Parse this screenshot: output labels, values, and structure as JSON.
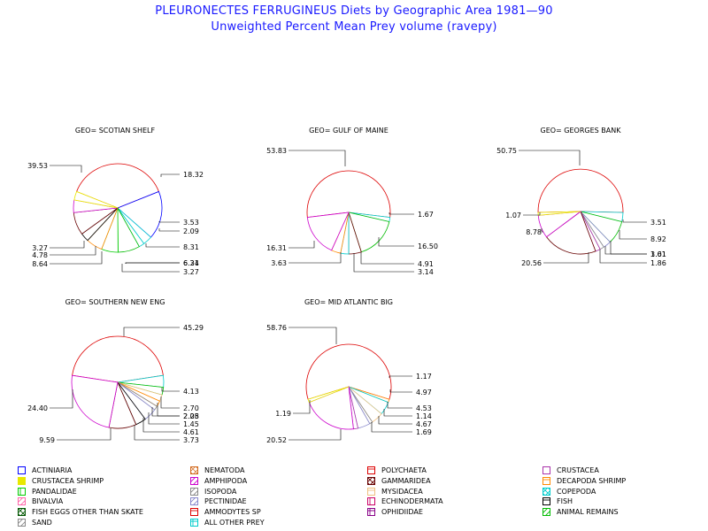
{
  "title": "PLEURONECTES FERRUGINEUS Diets by Geographic Area 1981—90",
  "subtitle": "Unweighted Percent Mean Prey volume (ravepy)",
  "legend_categories": [
    {
      "name": "ACTINIARIA",
      "color": "#0000ff",
      "pattern": "empty"
    },
    {
      "name": "NEMATODA",
      "color": "#d2691e",
      "pattern": "cross"
    },
    {
      "name": "POLYCHAETA",
      "color": "#dd0000",
      "pattern": "hlines"
    },
    {
      "name": "CRUSTACEA",
      "color": "#aa33aa",
      "pattern": "empty"
    },
    {
      "name": "CRUSTACEA SHRIMP",
      "color": "#e8e800",
      "pattern": "solid"
    },
    {
      "name": "AMPHIPODA",
      "color": "#cc00cc",
      "pattern": "diag"
    },
    {
      "name": "GAMMARIDEA",
      "color": "#660000",
      "pattern": "xhatch"
    },
    {
      "name": "DECAPODA SHRIMP",
      "color": "#ff8800",
      "pattern": "hlines"
    },
    {
      "name": "PANDALIDAE",
      "color": "#00cc00",
      "pattern": "vlines"
    },
    {
      "name": "ISOPODA",
      "color": "#888888",
      "pattern": "diag"
    },
    {
      "name": "MYSIDACEA",
      "color": "#f0c080",
      "pattern": "hlines"
    },
    {
      "name": "COPEPODA",
      "color": "#00cccc",
      "pattern": "xhatch"
    },
    {
      "name": "BIVALVIA",
      "color": "#ff66aa",
      "pattern": "diag"
    },
    {
      "name": "PECTINIDAE",
      "color": "#8888cc",
      "pattern": "diag"
    },
    {
      "name": "ECHINODERMATA",
      "color": "#cc0066",
      "pattern": "vlines"
    },
    {
      "name": "FISH",
      "color": "#000000",
      "pattern": "hlines"
    },
    {
      "name": "FISH EGGS OTHER THAN SKATE",
      "color": "#005500",
      "pattern": "xhatch"
    },
    {
      "name": "AMMODYTES SP",
      "color": "#dd0000",
      "pattern": "hlines"
    },
    {
      "name": "OPHIDIIDAE",
      "color": "#880088",
      "pattern": "grid"
    },
    {
      "name": "ANIMAL REMAINS",
      "color": "#00bb00",
      "pattern": "diag"
    },
    {
      "name": "SAND",
      "color": "#888888",
      "pattern": "diag"
    },
    {
      "name": "ALL OTHER PREY",
      "color": "#00cccc",
      "pattern": "grid"
    }
  ],
  "chart_data": [
    {
      "type": "pie",
      "title": "GEO= SCOTIAN SHELF",
      "slices": [
        {
          "category": "POLYCHAETA",
          "value": 39.53,
          "label": "39.53"
        },
        {
          "category": "ACTINIARIA",
          "value": 18.32,
          "label": "18.32"
        },
        {
          "category": "ALL OTHER PREY",
          "value": 3.53,
          "label": "3.53"
        },
        {
          "category": "COPEPODA",
          "value": 2.09,
          "label": "2.09"
        },
        {
          "category": "ANIMAL REMAINS",
          "value": 8.31,
          "label": "8.31"
        },
        {
          "category": "PANDALIDAE",
          "value": 6.34,
          "label": "6.34"
        },
        {
          "category": "DECAPODA SHRIMP",
          "value": 6.21,
          "label": "6.21"
        },
        {
          "category": "FISH",
          "value": 3.27,
          "label": "3.27"
        },
        {
          "category": "GAMMARIDEA",
          "value": 8.64,
          "label": "8.64"
        },
        {
          "category": "AMPHIPODA",
          "value": 4.78,
          "label": "4.78"
        },
        {
          "category": "CRUSTACEA SHRIMP",
          "value": 3.27,
          "label": "3.27"
        }
      ]
    },
    {
      "type": "pie",
      "title": "GEO= GULF OF MAINE",
      "slices": [
        {
          "category": "POLYCHAETA",
          "value": 53.83,
          "label": "53.83"
        },
        {
          "category": "ALL OTHER PREY",
          "value": 1.67,
          "label": "1.67"
        },
        {
          "category": "ANIMAL REMAINS",
          "value": 16.5,
          "label": "16.50"
        },
        {
          "category": "GAMMARIDEA",
          "value": 4.91,
          "label": "4.91"
        },
        {
          "category": "COPEPODA",
          "value": 3.14,
          "label": "3.14"
        },
        {
          "category": "DECAPODA SHRIMP",
          "value": 3.63,
          "label": "3.63"
        },
        {
          "category": "AMPHIPODA",
          "value": 16.31,
          "label": "16.31"
        }
      ]
    },
    {
      "type": "pie",
      "title": "GEO= GEORGES BANK",
      "slices": [
        {
          "category": "POLYCHAETA",
          "value": 50.75,
          "label": "50.75"
        },
        {
          "category": "ALL OTHER PREY",
          "value": 3.51,
          "label": "3.51"
        },
        {
          "category": "ANIMAL REMAINS",
          "value": 8.92,
          "label": "8.92"
        },
        {
          "category": "PECTINIDAE",
          "value": 3.01,
          "label": "3.01"
        },
        {
          "category": "ISOPODA",
          "value": 1.61,
          "label": "1.61"
        },
        {
          "category": "CRUSTACEA",
          "value": 1.86,
          "label": "1.86"
        },
        {
          "category": "GAMMARIDEA",
          "value": 20.56,
          "label": "20.56"
        },
        {
          "category": "AMPHIPODA",
          "value": 8.78,
          "label": "8.78"
        },
        {
          "category": "CRUSTACEA SHRIMP",
          "value": 1.07,
          "label": "1.07"
        }
      ]
    },
    {
      "type": "pie",
      "title": "GEO= SOUTHERN NEW ENG",
      "slices": [
        {
          "category": "POLYCHAETA",
          "value": 45.29,
          "label": "45.29"
        },
        {
          "category": "ALL OTHER PREY",
          "value": 4.13,
          "label": "4.13"
        },
        {
          "category": "ANIMAL REMAINS",
          "value": 2.7,
          "label": "2.70"
        },
        {
          "category": "MYSIDACEA",
          "value": 2.28,
          "label": "2.28"
        },
        {
          "category": "DECAPODA SHRIMP",
          "value": 2.05,
          "label": "2.05"
        },
        {
          "category": "ISOPODA",
          "value": 1.45,
          "label": "1.45"
        },
        {
          "category": "PECTINIDAE",
          "value": 4.61,
          "label": "4.61"
        },
        {
          "category": "FISH",
          "value": 3.73,
          "label": "3.73"
        },
        {
          "category": "GAMMARIDEA",
          "value": 9.59,
          "label": "9.59"
        },
        {
          "category": "AMPHIPODA",
          "value": 24.4,
          "label": "24.40"
        }
      ]
    },
    {
      "type": "pie",
      "title": "GEO= MID ATLANTIC BIG",
      "slices": [
        {
          "category": "POLYCHAETA",
          "value": 58.76,
          "label": "58.76"
        },
        {
          "category": "DECAPODA SHRIMP",
          "value": 1.17,
          "label": "1.17"
        },
        {
          "category": "ALL OTHER PREY",
          "value": 4.97,
          "label": "4.97"
        },
        {
          "category": "MYSIDACEA",
          "value": 4.53,
          "label": "4.53"
        },
        {
          "category": "ISOPODA",
          "value": 1.14,
          "label": "1.14"
        },
        {
          "category": "PECTINIDAE",
          "value": 4.67,
          "label": "4.67"
        },
        {
          "category": "CRUSTACEA",
          "value": 1.69,
          "label": "1.69"
        },
        {
          "category": "AMPHIPODA",
          "value": 20.52,
          "label": "20.52"
        },
        {
          "category": "CRUSTACEA SHRIMP",
          "value": 1.19,
          "label": "1.19"
        }
      ]
    }
  ]
}
